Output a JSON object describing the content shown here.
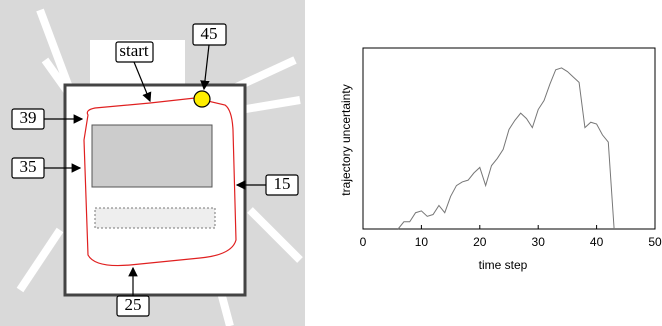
{
  "map": {
    "labels": [
      "start",
      "45",
      "39",
      "35",
      "15",
      "25"
    ]
  },
  "chart_data": {
    "type": "line",
    "xlabel": "time step",
    "ylabel": "trajectory uncertainty",
    "x": [
      6,
      7,
      8,
      9,
      10,
      11,
      12,
      13,
      14,
      15,
      16,
      17,
      18,
      19,
      20,
      21,
      22,
      23,
      24,
      25,
      26,
      27,
      28,
      29,
      30,
      31,
      32,
      33,
      34,
      35,
      36,
      37,
      38,
      39,
      40,
      41,
      42,
      43
    ],
    "series": [
      {
        "color": "#777777",
        "values": [
          0,
          0.04,
          0.04,
          0.09,
          0.1,
          0.07,
          0.08,
          0.13,
          0.09,
          0.18,
          0.24,
          0.26,
          0.27,
          0.31,
          0.34,
          0.24,
          0.35,
          0.39,
          0.44,
          0.55,
          0.6,
          0.64,
          0.61,
          0.56,
          0.66,
          0.71,
          0.8,
          0.88,
          0.89,
          0.87,
          0.84,
          0.81,
          0.56,
          0.59,
          0.58,
          0.52,
          0.48,
          0
        ]
      }
    ],
    "xlim": [
      0,
      50
    ],
    "xticks": [
      0,
      10,
      20,
      30,
      40,
      50
    ],
    "ylim": [
      0,
      1
    ]
  }
}
